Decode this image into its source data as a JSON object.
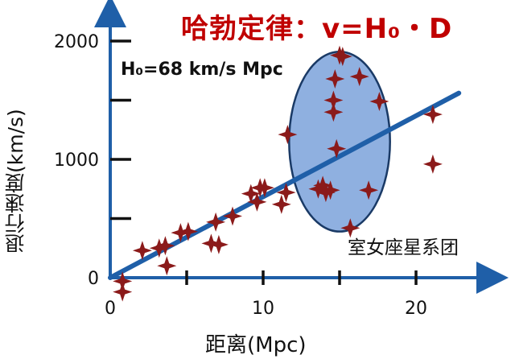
{
  "chart_data": {
    "type": "scatter",
    "title": "哈勃定律：v=H₀・D",
    "annotation": "H₀=68 km/s Mpc",
    "cluster_label": "室女座星系团",
    "xlabel": "距离(Mpc)",
    "ylabel": "退行速度(km/s)",
    "xlim": [
      0,
      24
    ],
    "ylim": [
      0,
      2000
    ],
    "x_ticks": [
      0,
      10,
      20
    ],
    "x_tick_labels": [
      "0",
      "10",
      "20"
    ],
    "y_ticks": [
      0,
      1000,
      2000
    ],
    "y_tick_labels": [
      "0",
      "1000",
      "2000"
    ],
    "x_minor_ticks": [
      5,
      15
    ],
    "y_minor_ticks": [
      500,
      1500
    ],
    "colors": {
      "axis": "#1f5fa8",
      "points": "#8b1a1a",
      "line": "#1f5fa8",
      "ellipse_fill": "#8fb0e0",
      "title": "#c00000"
    },
    "points": [
      {
        "x": 0.8,
        "y": -30
      },
      {
        "x": 0.8,
        "y": -120
      },
      {
        "x": 2.1,
        "y": 230
      },
      {
        "x": 3.2,
        "y": 250
      },
      {
        "x": 3.6,
        "y": 270
      },
      {
        "x": 3.7,
        "y": 100
      },
      {
        "x": 4.6,
        "y": 380
      },
      {
        "x": 5.1,
        "y": 390
      },
      {
        "x": 6.6,
        "y": 290
      },
      {
        "x": 6.9,
        "y": 470
      },
      {
        "x": 7.1,
        "y": 280
      },
      {
        "x": 8.0,
        "y": 520
      },
      {
        "x": 9.2,
        "y": 710
      },
      {
        "x": 9.6,
        "y": 640
      },
      {
        "x": 9.8,
        "y": 760
      },
      {
        "x": 10.1,
        "y": 760
      },
      {
        "x": 11.2,
        "y": 620
      },
      {
        "x": 11.5,
        "y": 720
      },
      {
        "x": 11.6,
        "y": 1210
      },
      {
        "x": 13.6,
        "y": 750
      },
      {
        "x": 13.9,
        "y": 780
      },
      {
        "x": 14.1,
        "y": 720
      },
      {
        "x": 14.4,
        "y": 740
      },
      {
        "x": 14.6,
        "y": 1500
      },
      {
        "x": 14.6,
        "y": 1400
      },
      {
        "x": 14.7,
        "y": 1680
      },
      {
        "x": 14.8,
        "y": 1090
      },
      {
        "x": 15.0,
        "y": 1880
      },
      {
        "x": 15.2,
        "y": 1870
      },
      {
        "x": 15.7,
        "y": 420
      },
      {
        "x": 16.3,
        "y": 1700
      },
      {
        "x": 16.9,
        "y": 740
      },
      {
        "x": 17.6,
        "y": 1490
      },
      {
        "x": 21.1,
        "y": 1380
      },
      {
        "x": 21.1,
        "y": 960
      }
    ],
    "fit_line": {
      "x": [
        0,
        22.8
      ],
      "y": [
        0,
        1560
      ]
    },
    "ellipse": {
      "cx": 15.0,
      "cy": 1150,
      "rx": 3.3,
      "ry": 760
    }
  }
}
